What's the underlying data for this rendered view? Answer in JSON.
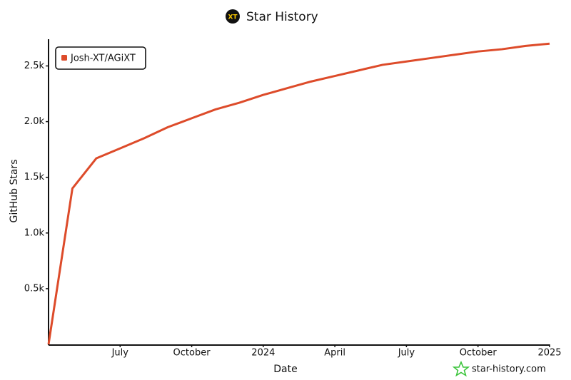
{
  "chart_data": {
    "type": "line",
    "title": "Star History",
    "icon_label": "XT",
    "watermark": "star-history.com",
    "x_label": "Date",
    "y_label": "GitHub Stars",
    "x": [
      "2023-04",
      "2023-05",
      "2023-06",
      "2023-07",
      "2023-08",
      "2023-09",
      "2023-10",
      "2023-11",
      "2023-12",
      "2024-01",
      "2024-02",
      "2024-03",
      "2024-04",
      "2024-05",
      "2024-06",
      "2024-07",
      "2024-08",
      "2024-09",
      "2024-10",
      "2024-11",
      "2024-12",
      "2025-01"
    ],
    "series": [
      {
        "name": "Josh-XT/AGiXT",
        "color": "#dd4b2a",
        "values": [
          0,
          1400,
          1670,
          1760,
          1850,
          1950,
          2030,
          2110,
          2170,
          2240,
          2300,
          2360,
          2410,
          2460,
          2510,
          2540,
          2570,
          2600,
          2630,
          2650,
          2680,
          2700
        ]
      }
    ],
    "xlim": [
      "2023-04",
      "2025-01"
    ],
    "xticks": [
      {
        "value": "2023-07",
        "label": "July"
      },
      {
        "value": "2023-10",
        "label": "October"
      },
      {
        "value": "2024-01",
        "label": "2024"
      },
      {
        "value": "2024-04",
        "label": "April"
      },
      {
        "value": "2024-07",
        "label": "July"
      },
      {
        "value": "2024-10",
        "label": "October"
      },
      {
        "value": "2025-01",
        "label": "2025"
      }
    ],
    "ylim": [
      0,
      2740
    ],
    "yticks": [
      {
        "value": 500,
        "label": "0.5k"
      },
      {
        "value": 1000,
        "label": "1.0k"
      },
      {
        "value": 1500,
        "label": "1.5k"
      },
      {
        "value": 2000,
        "label": "2.0k"
      },
      {
        "value": 2500,
        "label": "2.5k"
      }
    ],
    "legend": "top-left"
  }
}
